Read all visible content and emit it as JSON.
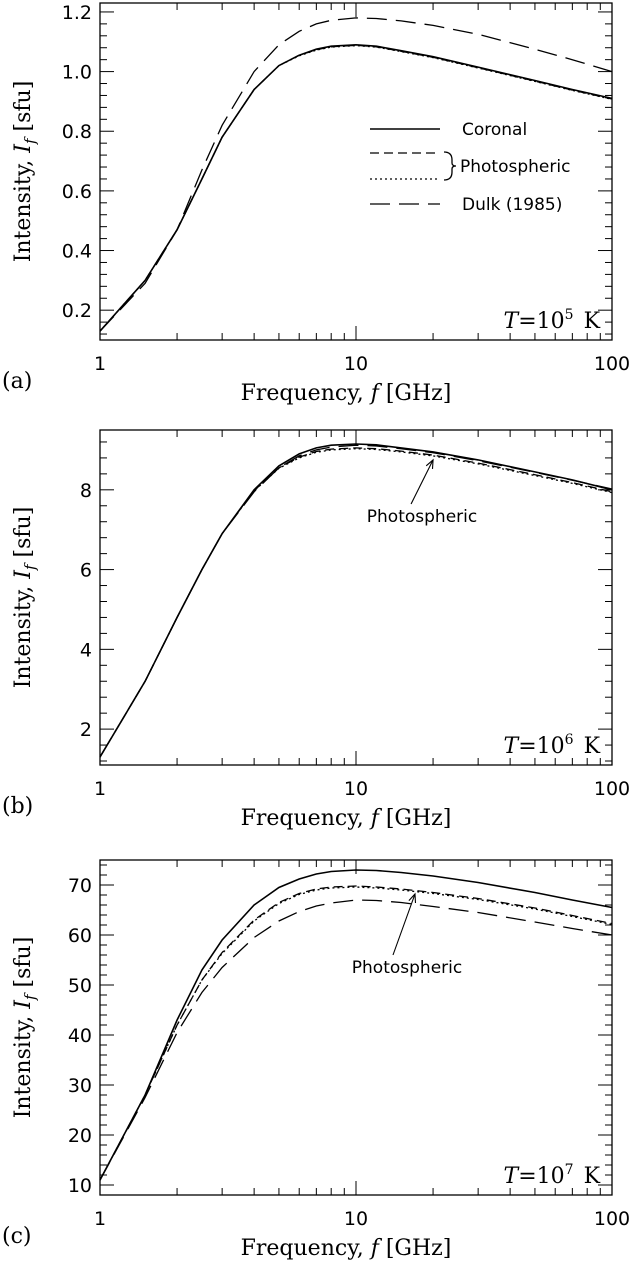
{
  "chart_data": [
    {
      "type": "line",
      "panel_label": "(a)",
      "xlabel": "Frequency, f [GHz]",
      "ylabel": "Intensity, I_f [sfu]",
      "xscale": "log",
      "xlim": [
        1,
        100
      ],
      "ylim": [
        0.1,
        1.23
      ],
      "x_ticks": [
        1,
        10,
        100
      ],
      "y_ticks": [
        0.2,
        0.4,
        0.6,
        0.8,
        1.0,
        1.2
      ],
      "y_tick_labels": [
        "0.2",
        "0.4",
        "0.6",
        "0.8",
        "1.0",
        "1.2"
      ],
      "temperature_label": {
        "var": "T",
        "base": "=10",
        "exp": "5",
        "unit": "K"
      },
      "legend": {
        "coronal": "Coronal",
        "photospheric": "Photospheric",
        "dulk": "Dulk (1985)",
        "placement": "center-right"
      },
      "series": [
        {
          "name": "Coronal",
          "style": "solid",
          "x": [
            1,
            1.5,
            2,
            2.5,
            3,
            4,
            5,
            6,
            7,
            8,
            10,
            12,
            15,
            20,
            30,
            50,
            70,
            100
          ],
          "y": [
            0.13,
            0.3,
            0.47,
            0.64,
            0.78,
            0.94,
            1.02,
            1.055,
            1.075,
            1.085,
            1.09,
            1.085,
            1.07,
            1.05,
            1.015,
            0.97,
            0.94,
            0.91
          ]
        },
        {
          "name": "Photospheric",
          "style": "dashed",
          "x": [
            1,
            1.5,
            2,
            2.5,
            3,
            4,
            5,
            6,
            7,
            8,
            10,
            12,
            15,
            20,
            30,
            50,
            70,
            100
          ],
          "y": [
            0.13,
            0.3,
            0.47,
            0.64,
            0.78,
            0.94,
            1.02,
            1.055,
            1.073,
            1.083,
            1.088,
            1.083,
            1.068,
            1.048,
            1.013,
            0.968,
            0.938,
            0.908
          ]
        },
        {
          "name": "Photospheric",
          "style": "dotted",
          "x": [
            1,
            1.5,
            2,
            2.5,
            3,
            4,
            5,
            6,
            7,
            8,
            10,
            12,
            15,
            20,
            30,
            50,
            70,
            100
          ],
          "y": [
            0.13,
            0.3,
            0.47,
            0.64,
            0.78,
            0.94,
            1.02,
            1.053,
            1.072,
            1.082,
            1.087,
            1.082,
            1.067,
            1.047,
            1.012,
            0.967,
            0.937,
            0.907
          ]
        },
        {
          "name": "Dulk (1985)",
          "style": "longdash",
          "x": [
            1,
            1.5,
            2,
            2.5,
            3,
            4,
            5,
            6,
            7,
            8,
            10,
            12,
            15,
            20,
            30,
            50,
            70,
            100
          ],
          "y": [
            0.13,
            0.29,
            0.47,
            0.67,
            0.82,
            1.0,
            1.09,
            1.135,
            1.16,
            1.172,
            1.18,
            1.178,
            1.17,
            1.155,
            1.125,
            1.075,
            1.04,
            1.0
          ]
        }
      ]
    },
    {
      "type": "line",
      "panel_label": "(b)",
      "xlabel": "Frequency, f [GHz]",
      "ylabel": "Intensity, I_f [sfu]",
      "xscale": "log",
      "xlim": [
        1,
        100
      ],
      "ylim": [
        1.1,
        9.5
      ],
      "x_ticks": [
        1,
        10,
        100
      ],
      "y_ticks": [
        2,
        4,
        6,
        8
      ],
      "y_tick_labels": [
        "2",
        "4",
        "6",
        "8"
      ],
      "temperature_label": {
        "var": "T",
        "base": "=10",
        "exp": "6",
        "unit": "K"
      },
      "annotation": {
        "text": "Photospheric",
        "arrow_to": [
          20,
          8.85
        ]
      },
      "series": [
        {
          "name": "Coronal",
          "style": "solid",
          "x": [
            1,
            1.5,
            2,
            2.5,
            3,
            4,
            5,
            6,
            7,
            8,
            10,
            12,
            15,
            20,
            30,
            50,
            70,
            100
          ],
          "y": [
            1.3,
            3.2,
            4.8,
            6.0,
            6.9,
            8.0,
            8.6,
            8.9,
            9.05,
            9.12,
            9.15,
            9.13,
            9.05,
            8.95,
            8.75,
            8.45,
            8.25,
            8.0
          ]
        },
        {
          "name": "Photospheric",
          "style": "dashed",
          "x": [
            1,
            1.5,
            2,
            2.5,
            3,
            4,
            5,
            6,
            7,
            8,
            10,
            12,
            15,
            20,
            30,
            50,
            70,
            100
          ],
          "y": [
            1.3,
            3.2,
            4.8,
            6.0,
            6.9,
            7.98,
            8.55,
            8.82,
            8.96,
            9.02,
            9.05,
            9.03,
            8.97,
            8.87,
            8.67,
            8.38,
            8.18,
            7.95
          ]
        },
        {
          "name": "Photospheric",
          "style": "dotted",
          "x": [
            1,
            1.5,
            2,
            2.5,
            3,
            4,
            5,
            6,
            7,
            8,
            10,
            12,
            15,
            20,
            30,
            50,
            70,
            100
          ],
          "y": [
            1.3,
            3.2,
            4.8,
            6.0,
            6.9,
            7.97,
            8.54,
            8.8,
            8.94,
            9.0,
            9.03,
            9.01,
            8.95,
            8.85,
            8.65,
            8.36,
            8.16,
            7.93
          ]
        },
        {
          "name": "Dulk (1985)",
          "style": "longdash",
          "x": [
            1,
            1.5,
            2,
            2.5,
            3,
            4,
            5,
            6,
            7,
            8,
            10,
            12,
            15,
            20,
            30,
            50,
            70,
            100
          ],
          "y": [
            1.3,
            3.2,
            4.8,
            6.0,
            6.9,
            7.95,
            8.55,
            8.85,
            9.0,
            9.07,
            9.12,
            9.1,
            9.03,
            8.93,
            8.73,
            8.44,
            8.24,
            8.02
          ]
        }
      ]
    },
    {
      "type": "line",
      "panel_label": "(c)",
      "xlabel": "Frequency, f [GHz]",
      "ylabel": "Intensity, I_f [sfu]",
      "xscale": "log",
      "xlim": [
        1,
        100
      ],
      "ylim": [
        8,
        75
      ],
      "x_ticks": [
        1,
        10,
        100
      ],
      "y_ticks": [
        10,
        20,
        30,
        40,
        50,
        60,
        70
      ],
      "y_tick_labels": [
        "10",
        "20",
        "30",
        "40",
        "50",
        "60",
        "70"
      ],
      "temperature_label": {
        "var": "T",
        "base": "=10",
        "exp": "7",
        "unit": "K"
      },
      "annotation": {
        "text": "Photospheric",
        "arrow_to": [
          17,
          69
        ]
      },
      "series": [
        {
          "name": "Coronal",
          "style": "solid",
          "x": [
            1,
            1.5,
            2,
            2.5,
            3,
            4,
            5,
            6,
            7,
            8,
            10,
            12,
            15,
            20,
            30,
            50,
            70,
            100
          ],
          "y": [
            11,
            28,
            43,
            53,
            59,
            66,
            69.5,
            71.2,
            72.2,
            72.7,
            73,
            72.9,
            72.5,
            71.8,
            70.5,
            68.5,
            67,
            65.5
          ]
        },
        {
          "name": "Photospheric",
          "style": "dashed",
          "x": [
            1,
            1.5,
            2,
            2.5,
            3,
            4,
            5,
            6,
            7,
            8,
            10,
            12,
            15,
            20,
            30,
            50,
            70,
            100
          ],
          "y": [
            11,
            28,
            42,
            51,
            56.5,
            63,
            66.5,
            68.3,
            69.2,
            69.6,
            69.8,
            69.6,
            69.2,
            68.5,
            67.3,
            65.4,
            63.9,
            62.3
          ]
        },
        {
          "name": "Photospheric",
          "style": "dotted",
          "x": [
            1,
            1.5,
            2,
            2.5,
            3,
            4,
            5,
            6,
            7,
            8,
            10,
            12,
            15,
            20,
            30,
            50,
            70,
            100
          ],
          "y": [
            11,
            28,
            42,
            51,
            56.3,
            62.8,
            66.3,
            68.1,
            69,
            69.4,
            69.6,
            69.4,
            69,
            68.3,
            67.1,
            65.2,
            63.7,
            62.1
          ]
        },
        {
          "name": "Dulk (1985)",
          "style": "longdash",
          "x": [
            1,
            1.5,
            2,
            2.5,
            3,
            4,
            5,
            6,
            7,
            8,
            10,
            12,
            15,
            20,
            30,
            50,
            70,
            100
          ],
          "y": [
            11,
            27.5,
            40.5,
            48.5,
            53.5,
            59.5,
            62.8,
            64.7,
            65.8,
            66.4,
            67,
            66.9,
            66.5,
            65.7,
            64.5,
            62.6,
            61.3,
            60
          ]
        }
      ]
    }
  ]
}
